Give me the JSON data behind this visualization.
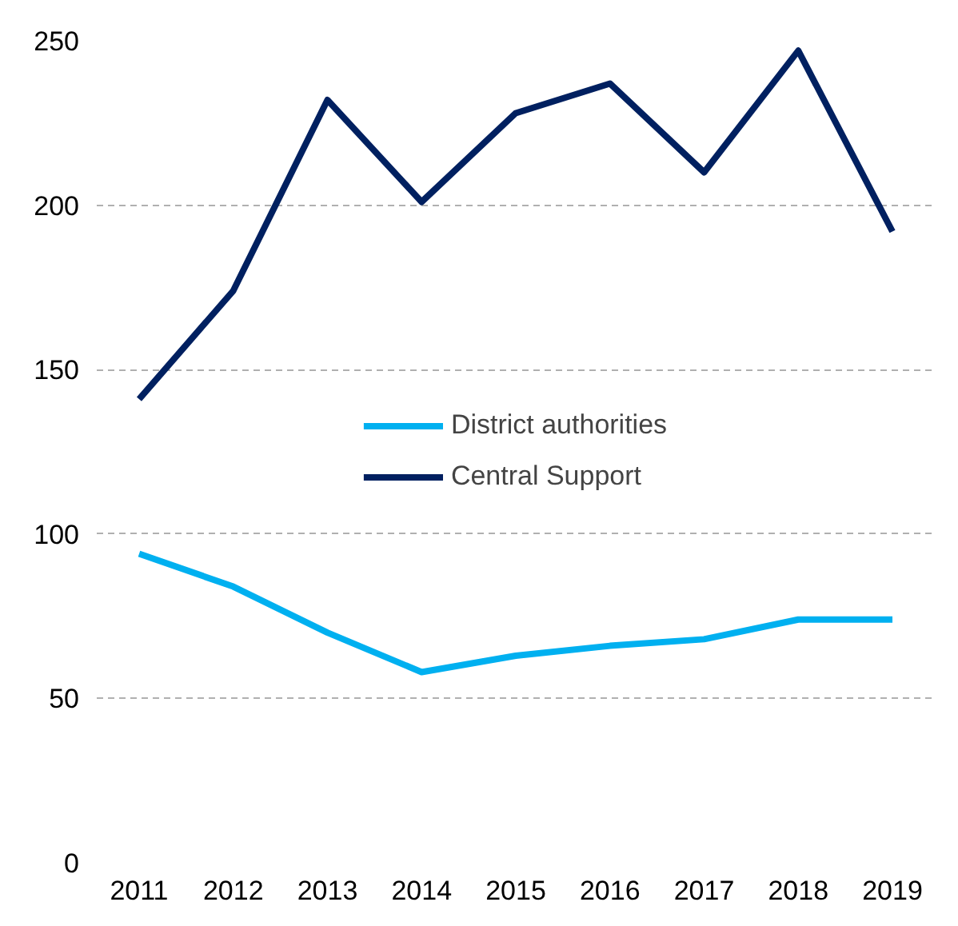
{
  "chart_data": {
    "type": "line",
    "categories": [
      "2011",
      "2012",
      "2013",
      "2014",
      "2015",
      "2016",
      "2017",
      "2018",
      "2019"
    ],
    "series": [
      {
        "name": "District authorities",
        "color": "#00b0f0",
        "values": [
          94,
          84,
          70,
          58,
          63,
          66,
          68,
          74,
          74
        ]
      },
      {
        "name": "Central Support",
        "color": "#002060",
        "values": [
          141,
          174,
          232,
          201,
          228,
          237,
          210,
          247,
          192
        ]
      }
    ],
    "ylim": [
      0,
      250
    ],
    "yticks": [
      0,
      50,
      100,
      150,
      200,
      250
    ],
    "grid": "y",
    "legend": "center",
    "line_style": "solid",
    "marker": "none"
  }
}
